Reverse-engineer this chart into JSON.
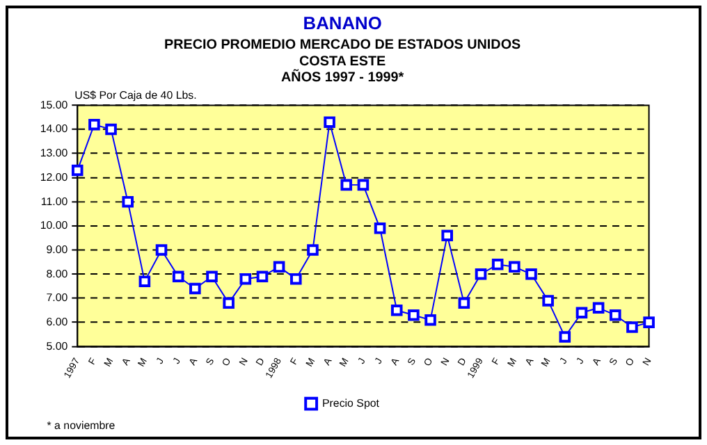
{
  "chart_data": {
    "type": "line",
    "title": "BANANO",
    "subtitle": "PRECIO PROMEDIO MERCADO DE ESTADOS UNIDOS\nCOSTA ESTE\nAÑOS 1997 - 1999*",
    "ylabel": "US$ Por Caja de 40 Lbs.",
    "categories": [
      "1997",
      "F",
      "M",
      "A",
      "M",
      "J",
      "J",
      "A",
      "S",
      "O",
      "N",
      "D",
      "1998",
      "F",
      "M",
      "A",
      "M",
      "J",
      "J",
      "A",
      "S",
      "O",
      "N",
      "D",
      "1999",
      "F",
      "M",
      "A",
      "M",
      "J",
      "J",
      "A",
      "S",
      "O",
      "N"
    ],
    "series": [
      {
        "name": "Precio Spot",
        "color": "#0000ff",
        "values": [
          12.3,
          14.2,
          14.0,
          11.0,
          7.7,
          9.0,
          7.9,
          7.4,
          7.9,
          6.8,
          7.8,
          7.9,
          8.3,
          7.8,
          9.0,
          14.3,
          11.7,
          11.7,
          9.9,
          6.5,
          6.3,
          6.1,
          9.6,
          6.8,
          8.0,
          8.4,
          8.3,
          8.0,
          6.9,
          5.4,
          6.4,
          6.6,
          6.3,
          5.8,
          6.0
        ]
      }
    ],
    "ylim": [
      5,
      15
    ],
    "yticks": [
      {
        "value": 5,
        "label": "5.00"
      },
      {
        "value": 6,
        "label": "6.00"
      },
      {
        "value": 7,
        "label": "7.00"
      },
      {
        "value": 8,
        "label": "8.00"
      },
      {
        "value": 9,
        "label": "9.00"
      },
      {
        "value": 10,
        "label": "10.00"
      },
      {
        "value": 11,
        "label": "11.00"
      },
      {
        "value": 12,
        "label": "12.00"
      },
      {
        "value": 13,
        "label": "13.00"
      },
      {
        "value": 14,
        "label": "14.00"
      },
      {
        "value": 15,
        "label": "15.00"
      }
    ],
    "grid": "y",
    "legend": "bottom",
    "marker": "square",
    "line_style": "solid",
    "annotations": [
      "* a noviembre"
    ]
  }
}
